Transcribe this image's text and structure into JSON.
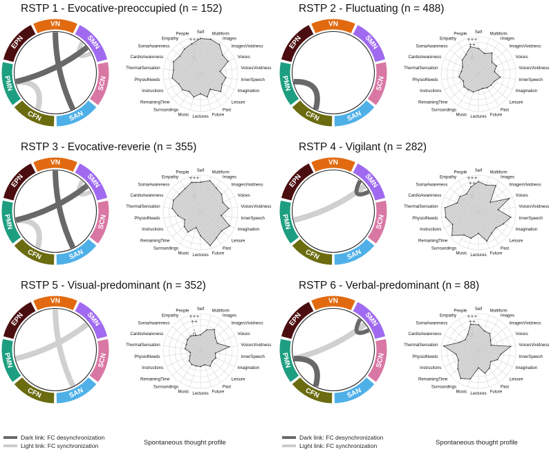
{
  "networks": [
    {
      "name": "VN",
      "color": "#e16a10"
    },
    {
      "name": "SMN",
      "color": "#a06af0"
    },
    {
      "name": "SCN",
      "color": "#d977a4"
    },
    {
      "name": "SAN",
      "color": "#4fb0e8"
    },
    {
      "name": "CFN",
      "color": "#6b6b10"
    },
    {
      "name": "PMN",
      "color": "#1e9e80"
    },
    {
      "name": "EPN",
      "color": "#4b0e10"
    }
  ],
  "radar_axes": [
    "Self",
    "Multiform",
    "Images",
    "ImagesVividness",
    "Voices",
    "VoicesVividness",
    "InnerSpeech",
    "Imagination",
    "Leisure",
    "Past",
    "Future",
    "Lectures",
    "Music",
    "Surroundings",
    "RemainingTime",
    "Instructions",
    "PhysiolNeeds",
    "ThermalSensation",
    "CardioAwareness",
    "SomaAwareness",
    "Empathy",
    "People"
  ],
  "level_labels": [
    "+++",
    "++",
    "-",
    "0"
  ],
  "link_legend": {
    "dark": "Dark link: FC desynchronization",
    "light": "Light link: FC synchronization"
  },
  "caption": "Spontaneous thought profile",
  "chart_data": [
    {
      "type": "radar",
      "title": "RSTP 1 - Evocative-preoccupied (n = 152)",
      "dark_links": [
        [
          "VN",
          "SAN"
        ],
        [
          "SMN",
          "PMN"
        ]
      ],
      "light_links": [
        [
          "SMN",
          "SMN"
        ],
        [
          "PMN",
          "CFN"
        ]
      ],
      "rlim": [
        -3,
        3
      ],
      "values": [
        2.7,
        2.8,
        2.6,
        1.6,
        1.8,
        0.0,
        1.0,
        0.7,
        1.2,
        -0.3,
        0.7,
        0.0,
        0.7,
        0.2,
        0.7,
        0.7,
        1.5,
        1.3,
        1.7,
        1.3,
        1.7,
        2.0
      ]
    },
    {
      "type": "radar",
      "title": "RSTP 2 - Fluctuating (n = 488)",
      "dark_links": [
        [
          "PMN",
          "CFN"
        ]
      ],
      "light_links": [],
      "rlim": [
        -3,
        3
      ],
      "values": [
        1.0,
        0.3,
        0.9,
        -0.3,
        0.0,
        -0.6,
        0.4,
        -0.4,
        -0.5,
        -0.6,
        -0.8,
        -0.6,
        -0.2,
        -0.2,
        -0.1,
        -0.5,
        0.0,
        -0.4,
        -0.4,
        0.3,
        0.6,
        1.5
      ]
    },
    {
      "type": "radar",
      "title": "RSTP 3 - Evocative-reverie (n = 355)",
      "dark_links": [
        [
          "VN",
          "SAN"
        ],
        [
          "SMN",
          "PMN"
        ]
      ],
      "light_links": [
        [
          "SMN",
          "SMN"
        ],
        [
          "PMN",
          "CFN"
        ]
      ],
      "rlim": [
        -3,
        3
      ],
      "values": [
        1.8,
        2.3,
        1.6,
        1.4,
        0.8,
        1.5,
        0.2,
        2.1,
        1.4,
        1.7,
        2.5,
        0.6,
        -0.7,
        0.6,
        0.3,
        -0.4,
        0.5,
        1.5,
        1.7,
        1.4,
        1.5,
        2.0
      ]
    },
    {
      "type": "radar",
      "title": "RSTP 4 - Vigilant (n = 282)",
      "dark_links": [
        [
          "SMN",
          "SMN"
        ]
      ],
      "light_links": [
        [
          "SMN",
          "PMN"
        ]
      ],
      "rlim": [
        -3,
        3
      ],
      "values": [
        1.9,
        1.5,
        2.1,
        -0.7,
        2.4,
        0.0,
        2.2,
        1.3,
        0.6,
        0.8,
        1.7,
        0.2,
        1.2,
        1.2,
        2.6,
        1.5,
        2.3,
        2.4,
        0.6,
        0.8,
        0.4,
        1.2
      ]
    },
    {
      "type": "radar",
      "title": "RSTP 5 - Visual-predominant (n = 352)",
      "dark_links": [],
      "light_links": [
        [
          "VN",
          "SAN"
        ],
        [
          "SMN",
          "PMN"
        ]
      ],
      "rlim": [
        -3,
        3
      ],
      "values": [
        -0.6,
        0.4,
        1.0,
        0.0,
        -0.2,
        1.6,
        -0.8,
        -0.5,
        -0.7,
        -0.3,
        -0.9,
        -0.7,
        -0.7,
        -0.6,
        -0.8,
        -1.4,
        -1.6,
        -0.7,
        -0.7,
        -0.4,
        -0.3,
        -0.6
      ]
    },
    {
      "type": "radar",
      "title": "RSTP 6 - Verbal-predominant (n = 88)",
      "dark_links": [
        [
          "SMN",
          "SMN"
        ],
        [
          "PMN",
          "CFN"
        ]
      ],
      "light_links": [
        [
          "SMN",
          "PMN"
        ]
      ],
      "rlim": [
        -3,
        3
      ],
      "values": [
        1.1,
        0.2,
        0.2,
        -0.6,
        -1.0,
        2.2,
        0.5,
        0.2,
        -0.6,
        0.1,
        0.6,
        -0.5,
        1.6,
        2.2,
        1.3,
        0.4,
        0.5,
        2.6,
        0.2,
        -0.4,
        0.0,
        1.4
      ]
    }
  ]
}
